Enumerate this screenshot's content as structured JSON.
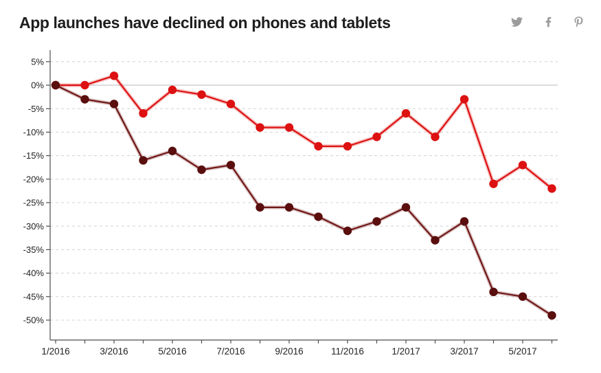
{
  "header": {
    "title": "App launches have declined on phones and tablets",
    "share_icons": [
      {
        "name": "twitter"
      },
      {
        "name": "facebook"
      },
      {
        "name": "pinterest"
      }
    ]
  },
  "colors": {
    "red_line": "#dd1111",
    "red_halo": "rgba(221,17,17,0.25)",
    "dark_marker": "#5a0e0e",
    "dark_line": "#701616",
    "dark_halo": "rgba(112,22,22,0.25)",
    "grid": "#d6d6d6",
    "zero_line": "#c8c8c8",
    "axis": "#4d4d4d",
    "tick_text": "#222222",
    "title_text": "#1e1e1e",
    "icon_gray": "#9b9b9b"
  },
  "chart_data": {
    "type": "line",
    "title": "App launches have declined on phones and tablets",
    "x": [
      "1/2016",
      "2/2016",
      "3/2016",
      "4/2016",
      "5/2016",
      "6/2016",
      "7/2016",
      "8/2016",
      "9/2016",
      "10/2016",
      "11/2016",
      "12/2016",
      "1/2017",
      "2/2017",
      "3/2017",
      "4/2017",
      "5/2017",
      "6/2017"
    ],
    "x_tick_labels": [
      "1/2016",
      "3/2016",
      "5/2016",
      "7/2016",
      "9/2016",
      "11/2016",
      "1/2017",
      "3/2017",
      "5/2017"
    ],
    "y_ticks": [
      5,
      0,
      -5,
      -10,
      -15,
      -20,
      -25,
      -30,
      -35,
      -40,
      -45,
      -50
    ],
    "y_tick_suffix": "%",
    "ylim": [
      -54.5,
      7.5
    ],
    "grid": "horizontal dashed, solid line at 0",
    "legend": "none",
    "series": [
      {
        "name": "red-line",
        "color_key": "red",
        "values": [
          0,
          0,
          2,
          -6,
          -1,
          -2,
          -4,
          -9,
          -9,
          -13,
          -13,
          -11,
          -6,
          -11,
          -3,
          -21,
          -17,
          -22
        ]
      },
      {
        "name": "dark-red-line",
        "color_key": "dark",
        "values": [
          0,
          -3,
          -4,
          -16,
          -14,
          -18,
          -17,
          -26,
          -26,
          -28,
          -31,
          -29,
          -26,
          -33,
          -29,
          -44,
          -45,
          -49
        ]
      }
    ]
  }
}
